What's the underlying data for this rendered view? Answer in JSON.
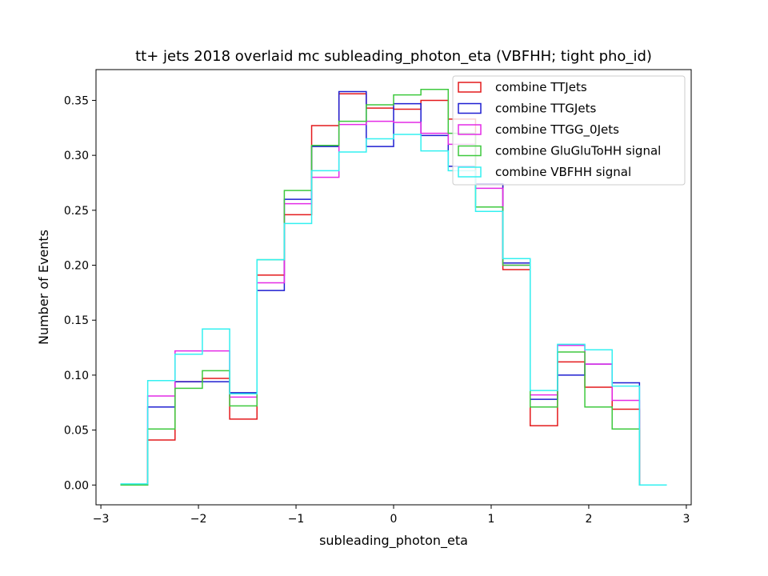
{
  "chart_data": {
    "type": "line",
    "subtype": "step-histogram",
    "title": "tt+ jets 2018 overlaid mc subleading_photon_eta (VBFHH; tight pho_id)",
    "xlabel": "subleading_photon_eta",
    "ylabel": "Number of Events",
    "xlim": [
      -3.05,
      3.05
    ],
    "ylim": [
      -0.018,
      0.378
    ],
    "xticks": [
      -3,
      -2,
      -1,
      0,
      1,
      2,
      3
    ],
    "xtick_labels": [
      "−3",
      "−2",
      "−1",
      "0",
      "1",
      "2",
      "3"
    ],
    "yticks": [
      0.0,
      0.05,
      0.1,
      0.15,
      0.2,
      0.25,
      0.3,
      0.35
    ],
    "ytick_labels": [
      "0.00",
      "0.05",
      "0.10",
      "0.15",
      "0.20",
      "0.25",
      "0.30",
      "0.35"
    ],
    "legend_position": "top-right",
    "grid": false,
    "bin_edges": [
      -2.8,
      -2.52,
      -2.24,
      -1.96,
      -1.68,
      -1.4,
      -1.12,
      -0.84,
      -0.56,
      -0.28,
      0.0,
      0.28,
      0.56,
      0.84,
      1.12,
      1.4,
      1.68,
      1.96,
      2.24,
      2.52,
      2.8
    ],
    "series": [
      {
        "name": "combine TTJets",
        "color": "#e41a1c",
        "values": [
          0.0,
          0.041,
          0.094,
          0.097,
          0.06,
          0.191,
          0.246,
          0.327,
          0.356,
          0.343,
          0.342,
          0.35,
          0.333,
          0.274,
          0.196,
          0.054,
          0.112,
          0.089,
          0.069,
          0.0
        ]
      },
      {
        "name": "combine TTGJets",
        "color": "#1f1fd1",
        "values": [
          0.0,
          0.071,
          0.094,
          0.094,
          0.084,
          0.177,
          0.26,
          0.308,
          0.358,
          0.308,
          0.347,
          0.318,
          0.29,
          0.274,
          0.202,
          0.078,
          0.1,
          0.11,
          0.093,
          0.0
        ]
      },
      {
        "name": "combine TTGG_0Jets",
        "color": "#e42be6",
        "values": [
          0.0,
          0.081,
          0.122,
          0.122,
          0.08,
          0.184,
          0.256,
          0.28,
          0.328,
          0.331,
          0.33,
          0.32,
          0.31,
          0.27,
          0.2,
          0.082,
          0.127,
          0.11,
          0.077,
          0.0
        ]
      },
      {
        "name": "combine GluGluToHH signal",
        "color": "#3ec93e",
        "values": [
          0.0,
          0.051,
          0.088,
          0.104,
          0.072,
          0.205,
          0.268,
          0.309,
          0.331,
          0.346,
          0.355,
          0.36,
          0.32,
          0.253,
          0.2,
          0.071,
          0.121,
          0.071,
          0.051,
          0.0
        ]
      },
      {
        "name": "combine VBFHH signal",
        "color": "#33f0f0",
        "values": [
          0.001,
          0.095,
          0.119,
          0.142,
          0.083,
          0.205,
          0.238,
          0.286,
          0.303,
          0.315,
          0.319,
          0.304,
          0.286,
          0.249,
          0.206,
          0.086,
          0.128,
          0.123,
          0.09,
          0.0
        ]
      }
    ]
  }
}
